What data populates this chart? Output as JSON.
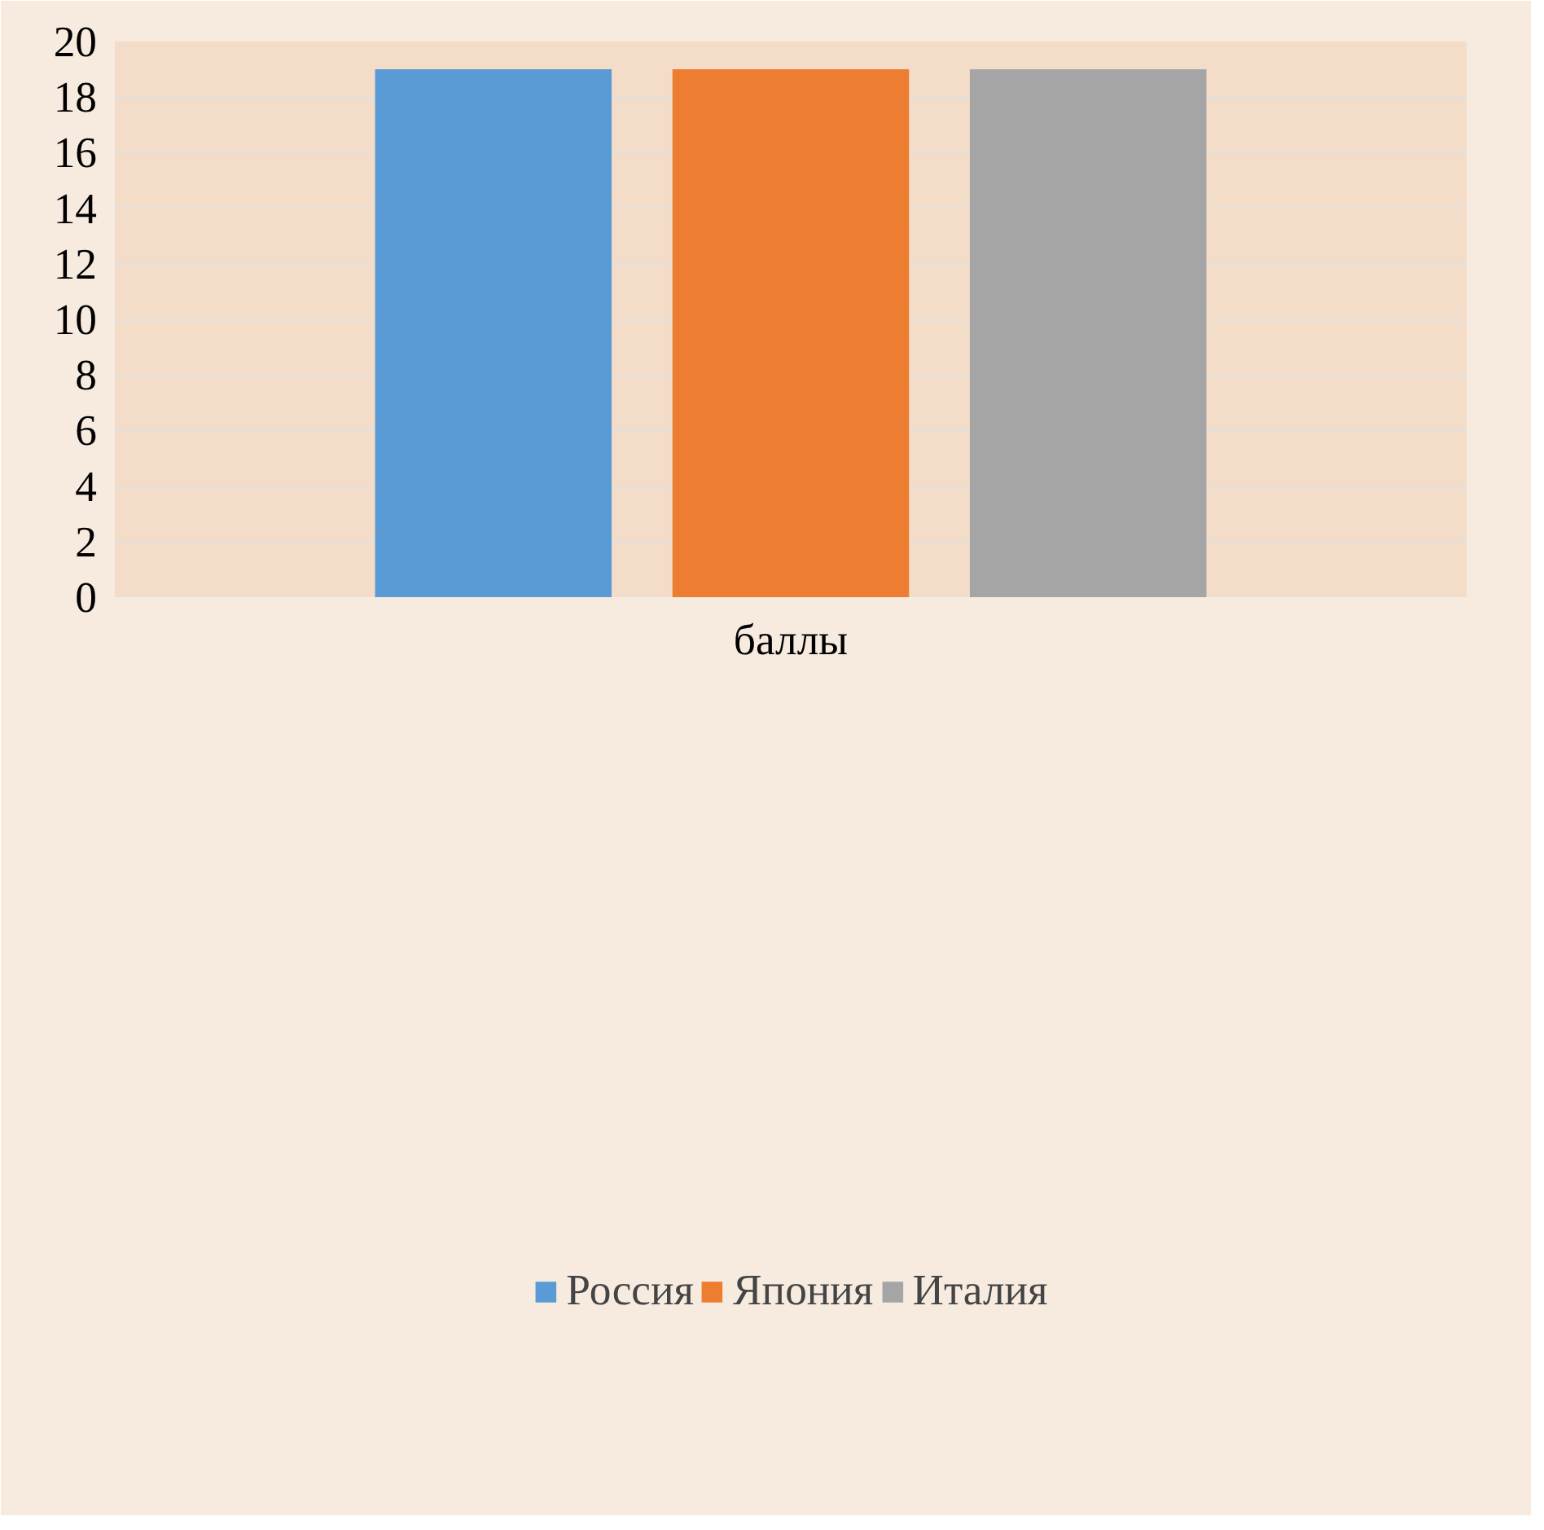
{
  "chart_data": {
    "type": "bar",
    "categories": [
      "баллы"
    ],
    "series": [
      {
        "name": "Россия",
        "color": "#5b9bd5",
        "values": [
          19
        ]
      },
      {
        "name": "Япония",
        "color": "#ed7d31",
        "values": [
          19
        ]
      },
      {
        "name": "Италия",
        "color": "#a5a5a5",
        "values": [
          19
        ]
      }
    ],
    "ylim": [
      0,
      20
    ],
    "yticks": [
      0,
      2,
      4,
      6,
      8,
      10,
      12,
      14,
      16,
      18,
      20
    ],
    "grid": "y",
    "legend": "bottom"
  }
}
